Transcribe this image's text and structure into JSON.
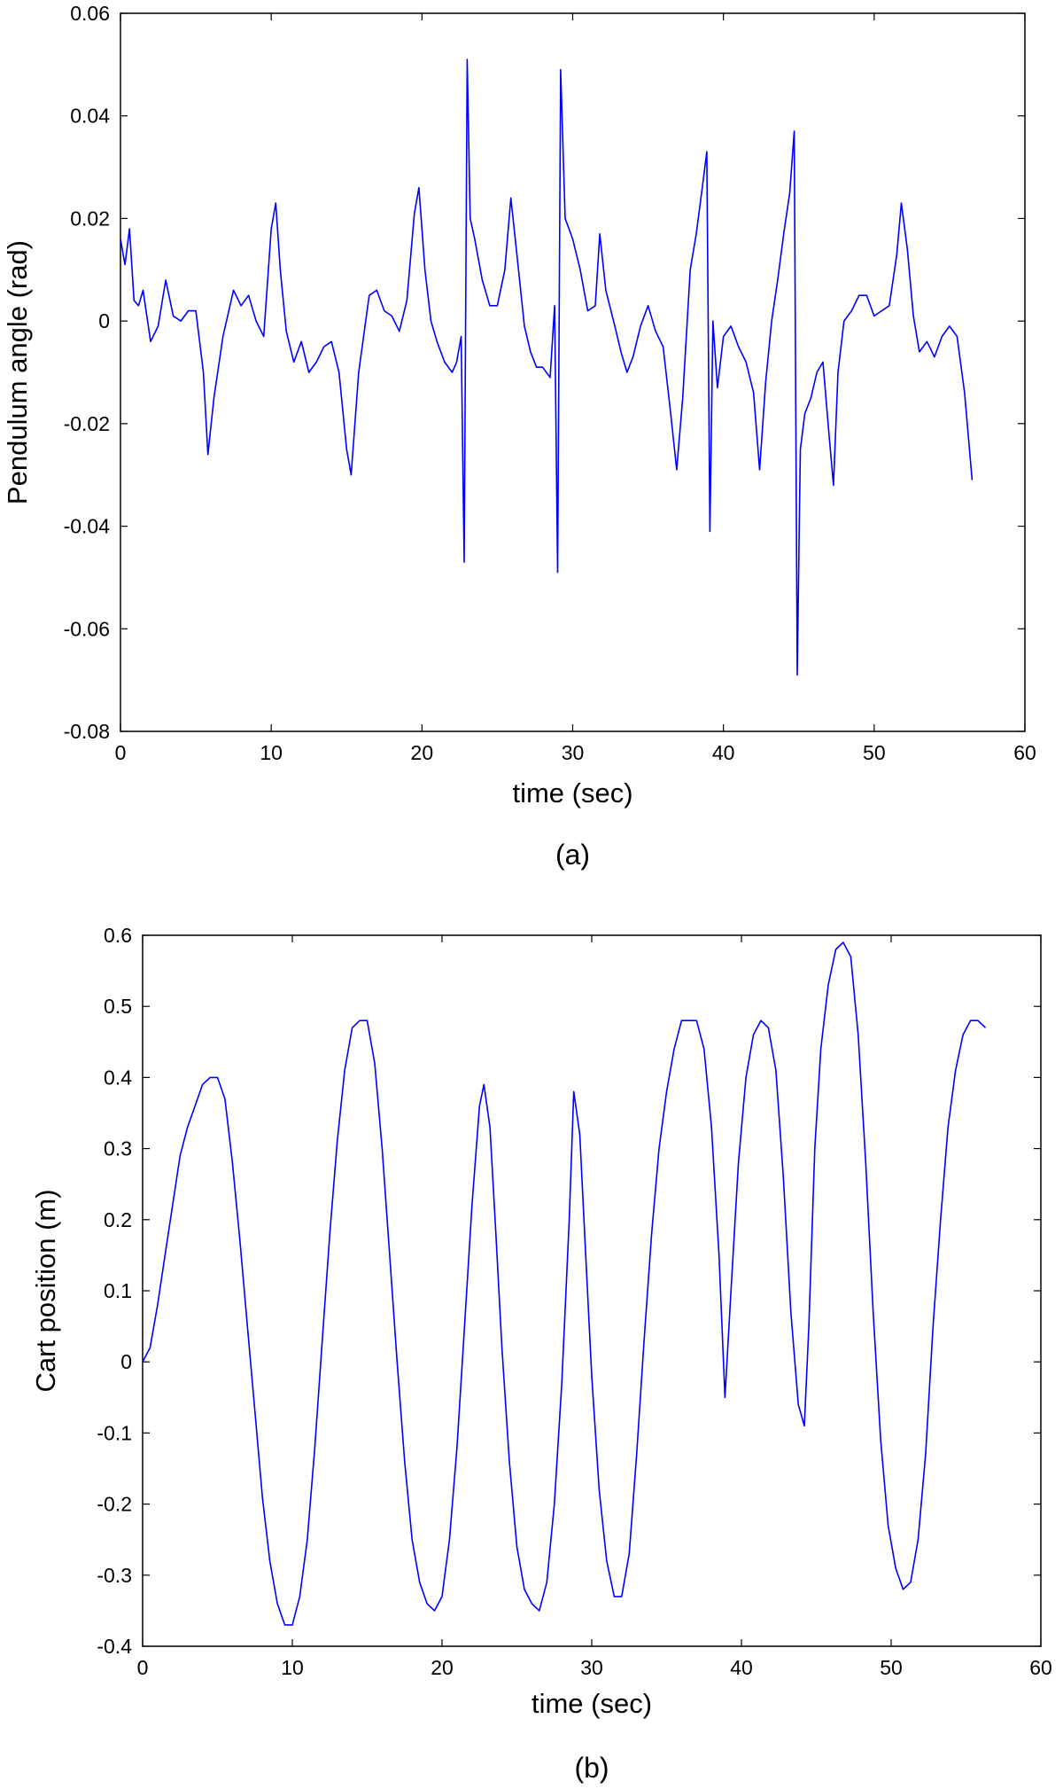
{
  "colors": {
    "series": "#0000ff",
    "axis": "#000000",
    "background": "#ffffff"
  },
  "chart_data": [
    {
      "type": "line",
      "caption": "(a)",
      "xlabel": "time (sec)",
      "ylabel": "Pendulum angle (rad)",
      "xlim": [
        0,
        60
      ],
      "ylim": [
        -0.08,
        0.06
      ],
      "xticks": [
        "0",
        "10",
        "20",
        "30",
        "40",
        "50",
        "60"
      ],
      "yticks": [
        "-0.08",
        "-0.06",
        "-0.04",
        "-0.02",
        "0",
        "0.02",
        "0.04",
        "0.06"
      ],
      "grid": false,
      "series": [
        {
          "x": [
            0,
            0.3,
            0.6,
            0.9,
            1.2,
            1.5,
            2.0,
            2.5,
            3.0,
            3.5,
            4.0,
            4.5,
            5.0,
            5.5,
            5.8,
            6.2,
            6.8,
            7.5,
            8.0,
            8.5,
            9.0,
            9.5,
            10.0,
            10.3,
            10.6,
            11.0,
            11.5,
            12.0,
            12.5,
            13.0,
            13.5,
            14.0,
            14.5,
            15.0,
            15.3,
            15.8,
            16.5,
            17.0,
            17.5,
            18.0,
            18.5,
            19.0,
            19.5,
            19.8,
            20.2,
            20.6,
            21.0,
            21.5,
            22.0,
            22.3,
            22.6,
            22.8,
            23.0,
            23.2,
            23.5,
            24.0,
            24.5,
            25.0,
            25.5,
            25.9,
            26.3,
            26.8,
            27.2,
            27.6,
            28.0,
            28.5,
            28.8,
            29.0,
            29.2,
            29.5,
            30.0,
            30.5,
            31.0,
            31.5,
            31.8,
            32.2,
            32.8,
            33.2,
            33.6,
            34.0,
            34.5,
            35.0,
            35.5,
            36.0,
            36.5,
            36.9,
            37.3,
            37.8,
            38.2,
            38.6,
            38.9,
            39.1,
            39.3,
            39.6,
            40.0,
            40.5,
            41.0,
            41.5,
            42.0,
            42.4,
            42.8,
            43.2,
            43.6,
            44.0,
            44.4,
            44.7,
            44.9,
            45.1,
            45.4,
            45.8,
            46.2,
            46.6,
            47.0,
            47.3,
            47.6,
            48.0,
            48.5,
            49.0,
            49.5,
            50.0,
            50.5,
            51.0,
            51.5,
            51.8,
            52.2,
            52.6,
            53.0,
            53.5,
            54.0,
            54.5,
            55.0,
            55.5,
            56.0,
            56.5
          ],
          "y": [
            0.016,
            0.011,
            0.018,
            0.004,
            0.003,
            0.006,
            -0.004,
            -0.001,
            0.008,
            0.001,
            0.0,
            0.002,
            0.002,
            -0.01,
            -0.026,
            -0.015,
            -0.003,
            0.006,
            0.003,
            0.005,
            0.0,
            -0.003,
            0.018,
            0.023,
            0.01,
            -0.002,
            -0.008,
            -0.004,
            -0.01,
            -0.008,
            -0.005,
            -0.004,
            -0.01,
            -0.025,
            -0.03,
            -0.01,
            0.005,
            0.006,
            0.002,
            0.001,
            -0.002,
            0.004,
            0.021,
            0.026,
            0.01,
            0.0,
            -0.004,
            -0.008,
            -0.01,
            -0.008,
            -0.003,
            -0.047,
            0.051,
            0.02,
            0.016,
            0.008,
            0.003,
            0.003,
            0.01,
            0.024,
            0.013,
            -0.001,
            -0.006,
            -0.009,
            -0.009,
            -0.011,
            0.003,
            -0.049,
            0.049,
            0.02,
            0.016,
            0.01,
            0.002,
            0.003,
            0.017,
            0.006,
            -0.001,
            -0.006,
            -0.01,
            -0.007,
            -0.001,
            0.003,
            -0.002,
            -0.005,
            -0.018,
            -0.029,
            -0.015,
            0.01,
            0.017,
            0.026,
            0.033,
            -0.041,
            0.0,
            -0.013,
            -0.003,
            -0.001,
            -0.005,
            -0.008,
            -0.014,
            -0.029,
            -0.012,
            0.0,
            0.008,
            0.017,
            0.025,
            0.037,
            -0.069,
            -0.025,
            -0.018,
            -0.015,
            -0.01,
            -0.008,
            -0.022,
            -0.032,
            -0.01,
            0.0,
            0.002,
            0.005,
            0.005,
            0.001,
            0.002,
            0.003,
            0.013,
            0.023,
            0.014,
            0.001,
            -0.006,
            -0.004,
            -0.007,
            -0.003,
            -0.001,
            -0.003,
            -0.014,
            -0.031
          ]
        }
      ]
    },
    {
      "type": "line",
      "caption": "(b)",
      "xlabel": "time (sec)",
      "ylabel": "Cart position (m)",
      "xlim": [
        0,
        60
      ],
      "ylim": [
        -0.4,
        0.6
      ],
      "xticks": [
        "0",
        "10",
        "20",
        "30",
        "40",
        "50",
        "60"
      ],
      "yticks": [
        "-0.4",
        "-0.3",
        "-0.2",
        "-0.1",
        "0",
        "0.1",
        "0.2",
        "0.3",
        "0.4",
        "0.5",
        "0.6"
      ],
      "grid": false,
      "series": [
        {
          "x": [
            0,
            0.5,
            1.0,
            1.5,
            2.0,
            2.5,
            3.0,
            3.5,
            4.0,
            4.5,
            5.0,
            5.5,
            6.0,
            6.5,
            7.0,
            7.5,
            8.0,
            8.5,
            9.0,
            9.5,
            10.0,
            10.5,
            11.0,
            11.5,
            12.0,
            12.5,
            13.0,
            13.5,
            14.0,
            14.5,
            15.0,
            15.5,
            16.0,
            16.5,
            17.0,
            17.5,
            18.0,
            18.5,
            19.0,
            19.5,
            20.0,
            20.5,
            21.0,
            21.5,
            22.0,
            22.5,
            22.8,
            23.2,
            23.6,
            24.0,
            24.5,
            25.0,
            25.5,
            26.0,
            26.5,
            27.0,
            27.5,
            28.0,
            28.5,
            28.8,
            29.2,
            29.6,
            30.0,
            30.5,
            31.0,
            31.5,
            32.0,
            32.5,
            33.0,
            33.5,
            34.0,
            34.5,
            35.0,
            35.5,
            36.0,
            36.5,
            37.0,
            37.5,
            38.0,
            38.5,
            38.9,
            39.3,
            39.8,
            40.3,
            40.8,
            41.3,
            41.8,
            42.3,
            42.8,
            43.3,
            43.8,
            44.2,
            44.5,
            44.9,
            45.3,
            45.8,
            46.3,
            46.8,
            47.3,
            47.8,
            48.3,
            48.8,
            49.3,
            49.8,
            50.3,
            50.8,
            51.3,
            51.8,
            52.3,
            52.8,
            53.3,
            53.8,
            54.3,
            54.8,
            55.3,
            55.8,
            56.3
          ],
          "y": [
            0.0,
            0.02,
            0.08,
            0.15,
            0.22,
            0.29,
            0.33,
            0.36,
            0.39,
            0.4,
            0.4,
            0.37,
            0.28,
            0.17,
            0.05,
            -0.07,
            -0.19,
            -0.28,
            -0.34,
            -0.37,
            -0.37,
            -0.33,
            -0.25,
            -0.12,
            0.03,
            0.18,
            0.31,
            0.41,
            0.47,
            0.48,
            0.48,
            0.42,
            0.3,
            0.15,
            0.0,
            -0.14,
            -0.25,
            -0.31,
            -0.34,
            -0.35,
            -0.33,
            -0.25,
            -0.12,
            0.05,
            0.22,
            0.36,
            0.39,
            0.33,
            0.18,
            0.02,
            -0.14,
            -0.26,
            -0.32,
            -0.34,
            -0.35,
            -0.31,
            -0.2,
            -0.03,
            0.2,
            0.38,
            0.32,
            0.15,
            -0.02,
            -0.18,
            -0.28,
            -0.33,
            -0.33,
            -0.27,
            -0.13,
            0.03,
            0.18,
            0.3,
            0.38,
            0.44,
            0.48,
            0.48,
            0.48,
            0.44,
            0.33,
            0.15,
            -0.05,
            0.1,
            0.28,
            0.4,
            0.46,
            0.48,
            0.47,
            0.41,
            0.26,
            0.07,
            -0.06,
            -0.09,
            0.05,
            0.3,
            0.44,
            0.53,
            0.58,
            0.59,
            0.57,
            0.46,
            0.28,
            0.07,
            -0.11,
            -0.23,
            -0.29,
            -0.32,
            -0.31,
            -0.25,
            -0.13,
            0.05,
            0.2,
            0.33,
            0.41,
            0.46,
            0.48,
            0.48,
            0.47
          ]
        }
      ]
    }
  ]
}
